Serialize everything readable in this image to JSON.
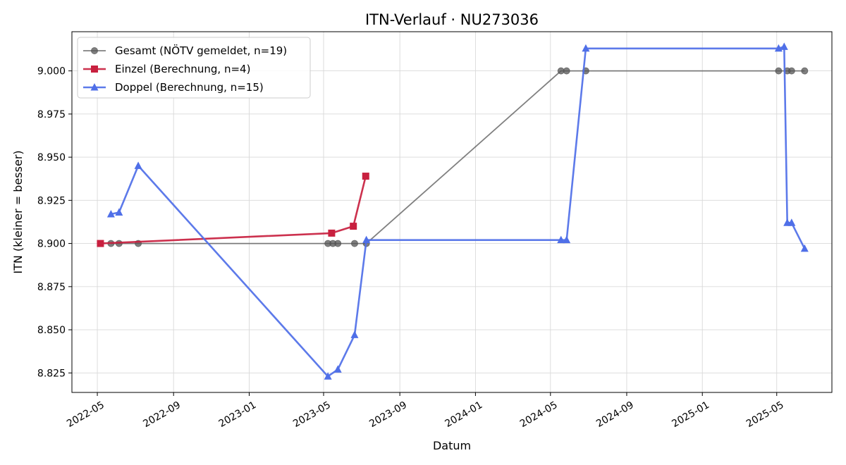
{
  "chart_data": {
    "type": "line",
    "title": "ITN-Verlauf · NU273036",
    "xlabel": "Datum",
    "ylabel": "ITN  (kleiner = besser)",
    "x_ticks": [
      "2022-05",
      "2022-09",
      "2023-01",
      "2023-05",
      "2023-09",
      "2024-01",
      "2024-05",
      "2024-09",
      "2025-01",
      "2025-05"
    ],
    "y_ticks": [
      "8.825",
      "8.850",
      "8.875",
      "8.900",
      "8.925",
      "8.950",
      "8.975",
      "9.000"
    ],
    "xlim": [
      "2022-03-21",
      "2025-07-29"
    ],
    "ylim": [
      8.8137,
      9.0227
    ],
    "grid": true,
    "legend_position": "top-left",
    "series": [
      {
        "name": "Gesamt (NÖTV gemeldet, n=19)",
        "color": "#555555",
        "marker": "circle",
        "points": [
          [
            "2022-05-23",
            8.9
          ],
          [
            "2022-06-05",
            8.9
          ],
          [
            "2022-07-06",
            8.9
          ],
          [
            "2023-05-08",
            8.9
          ],
          [
            "2023-05-16",
            8.9
          ],
          [
            "2023-05-24",
            8.9
          ],
          [
            "2023-06-20",
            8.9
          ],
          [
            "2023-07-09",
            8.9
          ],
          [
            "2024-05-18",
            9.0
          ],
          [
            "2024-05-27",
            9.0
          ],
          [
            "2024-06-27",
            9.0
          ],
          [
            "2025-05-04",
            9.0
          ],
          [
            "2025-05-18",
            9.0
          ],
          [
            "2025-05-25",
            9.0
          ],
          [
            "2025-06-15",
            9.0
          ]
        ]
      },
      {
        "name": "Einzel (Berechnung, n=4)",
        "color": "#c8203f",
        "marker": "square",
        "points": [
          [
            "2022-05-06",
            8.9
          ],
          [
            "2023-05-14",
            8.906
          ],
          [
            "2023-06-18",
            8.91
          ],
          [
            "2023-07-08",
            8.939
          ]
        ]
      },
      {
        "name": "Doppel (Berechnung, n=15)",
        "color": "#4f6fe8",
        "marker": "triangle",
        "points": [
          [
            "2022-05-23",
            8.917
          ],
          [
            "2022-06-05",
            8.918
          ],
          [
            "2022-07-06",
            8.945
          ],
          [
            "2023-05-08",
            8.823
          ],
          [
            "2023-05-24",
            8.827
          ],
          [
            "2023-06-20",
            8.847
          ],
          [
            "2023-07-09",
            8.902
          ],
          [
            "2024-05-18",
            8.902
          ],
          [
            "2024-05-27",
            8.902
          ],
          [
            "2024-06-27",
            9.013
          ],
          [
            "2025-05-04",
            9.013
          ],
          [
            "2025-05-13",
            9.014
          ],
          [
            "2025-05-18",
            8.912
          ],
          [
            "2025-05-25",
            8.912
          ],
          [
            "2025-06-15",
            8.897
          ]
        ]
      }
    ]
  }
}
